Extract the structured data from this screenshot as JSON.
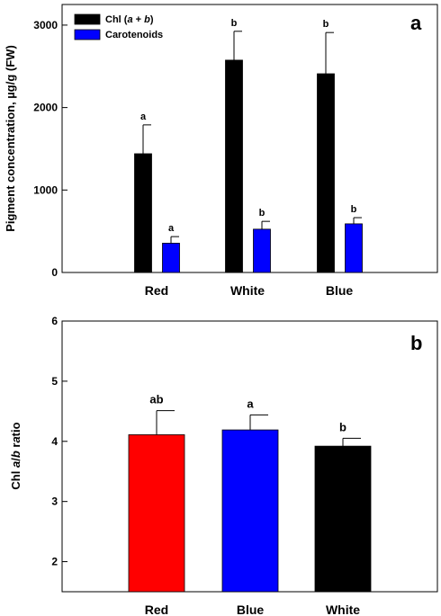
{
  "chart_data": [
    {
      "type": "bar",
      "panel": "a",
      "categories": [
        "Red",
        "White",
        "Blue"
      ],
      "ylabel": "Pigment concentration, µg/g (FW)",
      "ylim": [
        0,
        3250
      ],
      "yticks": [
        "0",
        "1000",
        "2000",
        "3000"
      ],
      "ytick_values": [
        0,
        1000,
        2000,
        3000
      ],
      "legend_position": "top-left",
      "series": [
        {
          "name": "Chl (a + b)",
          "color": "#000000",
          "values": [
            1440,
            2575,
            2410
          ],
          "errors": [
            350,
            350,
            500
          ],
          "letters": [
            "a",
            "b",
            "b"
          ]
        },
        {
          "name": "Carotenoids",
          "color": "#0000ff",
          "values": [
            355,
            525,
            590
          ],
          "errors": [
            80,
            95,
            75
          ],
          "letters": [
            "a",
            "b",
            "b"
          ]
        }
      ]
    },
    {
      "type": "bar",
      "panel": "b",
      "categories": [
        "Red",
        "Blue",
        "White"
      ],
      "ylabel": "Chl a/b ratio",
      "ylim": [
        1.5,
        6
      ],
      "yticks": [
        "2",
        "3",
        "4",
        "5",
        "6"
      ],
      "ytick_values": [
        2,
        3,
        4,
        5,
        6
      ],
      "series": [
        {
          "values": [
            4.11,
            4.19,
            3.92
          ],
          "errors": [
            0.4,
            0.25,
            0.13
          ],
          "colors": [
            "#ff0000",
            "#0000ff",
            "#000000"
          ],
          "letters": [
            "ab",
            "a",
            "b"
          ]
        }
      ]
    }
  ]
}
